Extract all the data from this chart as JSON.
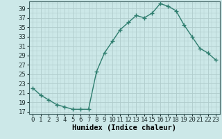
{
  "x": [
    0,
    1,
    2,
    3,
    4,
    5,
    6,
    7,
    8,
    9,
    10,
    11,
    12,
    13,
    14,
    15,
    16,
    17,
    18,
    19,
    20,
    21,
    22,
    23
  ],
  "y": [
    22,
    20.5,
    19.5,
    18.5,
    18,
    17.5,
    17.5,
    17.5,
    25.5,
    29.5,
    32,
    34.5,
    36,
    37.5,
    37,
    38,
    40,
    39.5,
    38.5,
    35.5,
    33,
    30.5,
    29.5,
    28
  ],
  "line_color": "#2e7d6e",
  "marker": "+",
  "bg_color": "#cce8e8",
  "grid_color": "#b0cccc",
  "xlabel": "Humidex (Indice chaleur)",
  "yticks": [
    17,
    19,
    21,
    23,
    25,
    27,
    29,
    31,
    33,
    35,
    37,
    39
  ],
  "ylim": [
    16.5,
    40.5
  ],
  "xlim": [
    -0.5,
    23.5
  ],
  "xticks": [
    0,
    1,
    2,
    3,
    4,
    5,
    6,
    7,
    8,
    9,
    10,
    11,
    12,
    13,
    14,
    15,
    16,
    17,
    18,
    19,
    20,
    21,
    22,
    23
  ],
  "xlabel_fontsize": 7.5,
  "tick_fontsize": 6.5,
  "line_width": 1.0,
  "marker_size": 4
}
